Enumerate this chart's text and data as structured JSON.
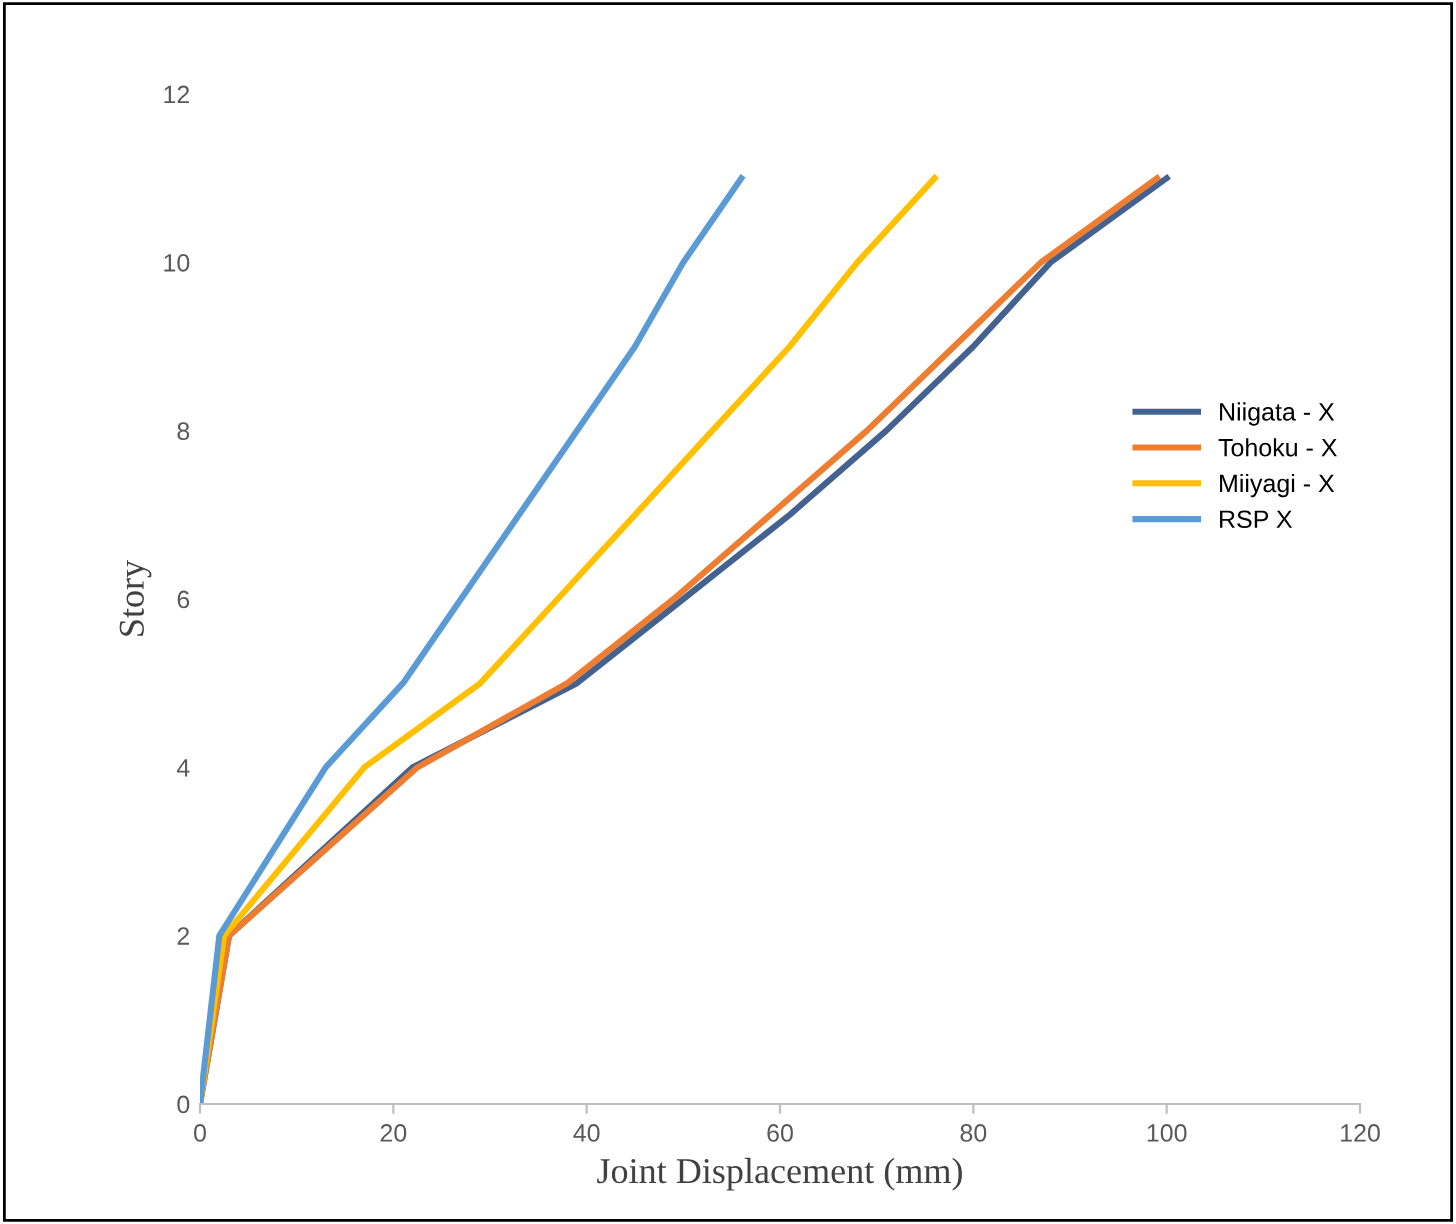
{
  "chart_data": {
    "type": "line",
    "xlabel": "Joint Displacement (mm)",
    "ylabel": "Story",
    "xlim": [
      0,
      120
    ],
    "xticks": [
      0,
      20,
      40,
      60,
      80,
      100,
      120
    ],
    "ylim": [
      0,
      12
    ],
    "yticks": [
      0,
      2,
      4,
      6,
      8,
      10,
      12
    ],
    "grid": false,
    "legend": "right",
    "marker": "none",
    "line_style": "solid",
    "series": [
      {
        "name": "Niigata - X",
        "color": "#44628f",
        "x": [
          0,
          3,
          22,
          39,
          50,
          61,
          71,
          80,
          88,
          100
        ],
        "values": [
          0,
          2,
          4,
          5,
          6,
          7,
          8,
          9,
          10,
          11
        ]
      },
      {
        "name": "Tohoku - X",
        "color": "#ed7d31",
        "x": [
          0,
          3,
          22.5,
          38,
          49,
          59,
          69,
          78,
          87,
          99
        ],
        "values": [
          0,
          2,
          4,
          5,
          6,
          7,
          8,
          9,
          10,
          11
        ]
      },
      {
        "name": "Miiyagi - X",
        "color": "#ffc000",
        "x": [
          0,
          2.5,
          17,
          29,
          37,
          45,
          53,
          61,
          68,
          76
        ],
        "values": [
          0,
          2,
          4,
          5,
          6,
          7,
          8,
          9,
          10,
          11
        ]
      },
      {
        "name": "RSP X",
        "color": "#5b9bd5",
        "x": [
          0,
          2,
          13,
          21,
          27,
          33,
          39,
          45,
          50,
          56
        ],
        "values": [
          0,
          2,
          4,
          5,
          6,
          7,
          8,
          9,
          10,
          11
        ]
      }
    ]
  }
}
